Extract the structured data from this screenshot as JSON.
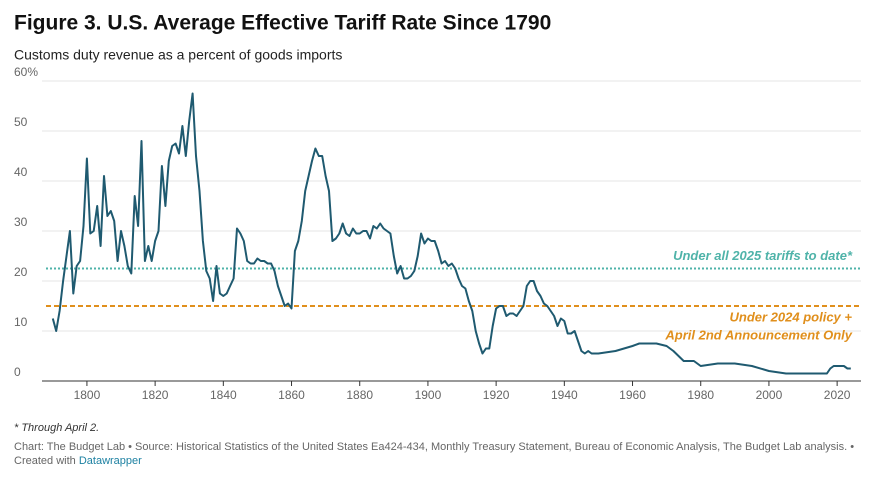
{
  "chart_data": {
    "type": "line",
    "title": "Figure 3. U.S. Average Effective Tariff Rate Since 1790",
    "subtitle": "Customs duty revenue as a percent of goods imports",
    "x": [
      1790,
      1791,
      1792,
      1793,
      1794,
      1795,
      1796,
      1797,
      1798,
      1799,
      1800,
      1801,
      1802,
      1803,
      1804,
      1805,
      1806,
      1807,
      1808,
      1809,
      1810,
      1811,
      1812,
      1813,
      1814,
      1815,
      1816,
      1817,
      1818,
      1819,
      1820,
      1821,
      1822,
      1823,
      1824,
      1825,
      1826,
      1827,
      1828,
      1829,
      1830,
      1831,
      1832,
      1833,
      1834,
      1835,
      1836,
      1837,
      1838,
      1839,
      1840,
      1841,
      1842,
      1843,
      1844,
      1845,
      1846,
      1847,
      1848,
      1849,
      1850,
      1851,
      1852,
      1853,
      1854,
      1855,
      1856,
      1857,
      1858,
      1859,
      1860,
      1861,
      1862,
      1863,
      1864,
      1865,
      1866,
      1867,
      1868,
      1869,
      1870,
      1871,
      1872,
      1873,
      1874,
      1875,
      1876,
      1877,
      1878,
      1879,
      1880,
      1881,
      1882,
      1883,
      1884,
      1885,
      1886,
      1887,
      1888,
      1889,
      1890,
      1891,
      1892,
      1893,
      1894,
      1895,
      1896,
      1897,
      1898,
      1899,
      1900,
      1901,
      1902,
      1903,
      1904,
      1905,
      1906,
      1907,
      1908,
      1909,
      1910,
      1911,
      1912,
      1913,
      1914,
      1915,
      1916,
      1917,
      1918,
      1919,
      1920,
      1921,
      1922,
      1923,
      1924,
      1925,
      1926,
      1927,
      1928,
      1929,
      1930,
      1931,
      1932,
      1933,
      1934,
      1935,
      1936,
      1937,
      1938,
      1939,
      1940,
      1941,
      1942,
      1943,
      1944,
      1945,
      1946,
      1947,
      1948,
      1949,
      1950,
      1955,
      1960,
      1962,
      1965,
      1967,
      1970,
      1972,
      1975,
      1978,
      1980,
      1985,
      1990,
      1995,
      2000,
      2005,
      2010,
      2015,
      2017,
      2018,
      2019,
      2020,
      2021,
      2022,
      2023,
      2024
    ],
    "values": [
      12.5,
      10,
      14,
      20,
      25,
      30,
      17.5,
      23,
      24,
      31,
      44.5,
      29.5,
      30,
      35,
      27,
      41,
      33,
      34,
      32,
      24,
      30,
      27,
      23,
      21.5,
      37,
      31,
      48,
      24,
      27,
      24,
      28,
      30,
      43,
      35,
      44,
      47,
      47.5,
      45.5,
      51,
      45,
      52,
      57.5,
      45,
      38,
      28,
      22,
      20.5,
      16,
      23,
      17.5,
      17,
      17.5,
      19,
      20.5,
      30.5,
      29.5,
      28,
      24,
      23.5,
      23.5,
      24.5,
      24,
      24,
      23.5,
      23.5,
      22,
      19,
      17,
      15,
      15.5,
      14.5,
      26,
      28,
      32,
      38,
      41,
      44,
      46.5,
      45,
      45,
      41,
      38,
      28,
      28.5,
      29.5,
      31.5,
      29.5,
      29,
      30.5,
      29.5,
      29.5,
      30,
      30,
      28.5,
      31,
      30.5,
      31.5,
      30.5,
      30,
      29.5,
      25,
      21.5,
      23,
      20.5,
      20.5,
      21,
      22,
      25,
      29.5,
      27.5,
      28.5,
      28,
      28,
      26,
      23.5,
      24,
      23,
      23.5,
      22.5,
      20.5,
      19,
      18.5,
      16,
      14,
      10,
      7.5,
      5.5,
      6.5,
      6.5,
      11,
      14.5,
      15,
      15,
      13,
      13.5,
      13.5,
      13,
      14,
      15,
      19,
      20,
      20,
      18,
      17,
      15.5,
      15,
      14,
      13,
      11,
      12.5,
      12,
      9.5,
      9.5,
      10,
      8,
      6,
      5.5,
      6,
      5.5,
      5.5,
      5.5,
      6,
      7,
      7.5,
      7.5,
      7.5,
      7,
      6,
      4,
      4,
      3,
      3.5,
      3.5,
      3,
      2,
      1.5,
      1.5,
      1.5,
      1.5,
      2.5,
      3,
      3,
      3,
      3,
      2.5,
      2.5
    ],
    "color": "#1f5a70",
    "xlim": [
      1788,
      2027
    ],
    "ylim": [
      0,
      60
    ],
    "xticks": [
      1800,
      1820,
      1840,
      1860,
      1880,
      1900,
      1920,
      1940,
      1960,
      1980,
      2000,
      2020
    ],
    "yticks": [
      0,
      10,
      20,
      30,
      40,
      50,
      {
        "value": 60,
        "label": "60%"
      }
    ],
    "grid": true,
    "reference_lines": [
      {
        "value": 22.5,
        "color": "#4fb3a9",
        "label": [
          "Under all 2025 tariffs to date*"
        ]
      },
      {
        "value": 15,
        "color": "#e08f1c",
        "label": [
          "Under 2024 policy +",
          "April 2nd Announcement Only"
        ]
      }
    ],
    "note": "* Through April 2.",
    "source": "Chart: The Budget Lab • Source: Historical Statistics of the United States Ea424-434, Monthly Treasury Statement, Bureau of Economic Analysis, The Budget Lab analysis. •",
    "credit": "Created with",
    "credit_link": "Datawrapper"
  }
}
